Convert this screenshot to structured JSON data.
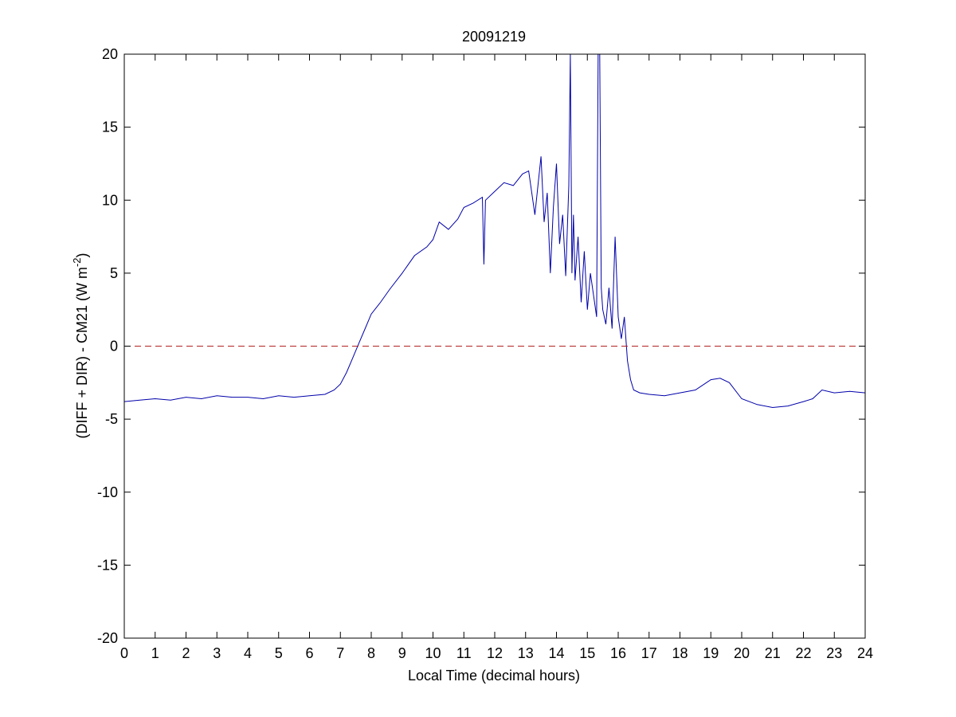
{
  "chart_data": {
    "type": "line",
    "title": "20091219",
    "xlabel": "Local Time (decimal hours)",
    "ylabel": {
      "prefix": "(DIFF + DIR) - CM21 (W m",
      "superscript": "-2",
      "suffix": ")"
    },
    "xlim": [
      0,
      24
    ],
    "ylim": [
      -20,
      20
    ],
    "xticks": [
      0,
      1,
      2,
      3,
      4,
      5,
      6,
      7,
      8,
      9,
      10,
      11,
      12,
      13,
      14,
      15,
      16,
      17,
      18,
      19,
      20,
      21,
      22,
      23,
      24
    ],
    "yticks": [
      -20,
      -15,
      -10,
      -5,
      0,
      5,
      10,
      15,
      20
    ],
    "grid": false,
    "series": [
      {
        "color": "#0000aa",
        "x": [
          0,
          0.5,
          1.0,
          1.5,
          2.0,
          2.5,
          3.0,
          3.5,
          4.0,
          4.5,
          5.0,
          5.5,
          6.0,
          6.5,
          6.8,
          7.0,
          7.2,
          7.4,
          7.6,
          7.8,
          8.0,
          8.3,
          8.6,
          9.0,
          9.4,
          9.8,
          10.0,
          10.2,
          10.5,
          10.8,
          11.0,
          11.3,
          11.6,
          11.65,
          11.7,
          12.0,
          12.3,
          12.6,
          12.9,
          13.1,
          13.3,
          13.5,
          13.6,
          13.7,
          13.8,
          13.9,
          14.0,
          14.1,
          14.2,
          14.3,
          14.4,
          14.45,
          14.5,
          14.55,
          14.6,
          14.7,
          14.8,
          14.9,
          15.0,
          15.1,
          15.2,
          15.3,
          15.35,
          15.4,
          15.45,
          15.5,
          15.6,
          15.7,
          15.8,
          15.9,
          16.0,
          16.1,
          16.2,
          16.3,
          16.4,
          16.5,
          16.7,
          17.0,
          17.5,
          18.0,
          18.5,
          19.0,
          19.3,
          19.6,
          20.0,
          20.5,
          21.0,
          21.5,
          22.0,
          22.3,
          22.6,
          23.0,
          23.5,
          24.0
        ],
        "values": [
          -3.8,
          -3.7,
          -3.6,
          -3.7,
          -3.5,
          -3.6,
          -3.4,
          -3.5,
          -3.5,
          -3.6,
          -3.4,
          -3.5,
          -3.4,
          -3.3,
          -3.0,
          -2.6,
          -1.8,
          -0.8,
          0.2,
          1.2,
          2.2,
          3.0,
          3.9,
          5.0,
          6.2,
          6.8,
          7.3,
          8.5,
          8.0,
          8.7,
          9.5,
          9.8,
          10.2,
          5.6,
          10.0,
          10.6,
          11.2,
          11.0,
          11.8,
          12.0,
          9.0,
          13.0,
          8.5,
          10.5,
          5.0,
          9.5,
          12.5,
          7.0,
          9.0,
          4.8,
          11.0,
          20.0,
          5.0,
          9.0,
          4.5,
          7.5,
          3.0,
          6.5,
          2.5,
          5.0,
          3.5,
          2.0,
          20.0,
          20.0,
          4.0,
          2.5,
          1.5,
          4.0,
          1.2,
          7.5,
          2.0,
          0.5,
          2.0,
          -1.0,
          -2.3,
          -3.0,
          -3.2,
          -3.3,
          -3.4,
          -3.2,
          -3.0,
          -2.3,
          -2.2,
          -2.5,
          -3.6,
          -4.0,
          -4.2,
          -4.1,
          -3.8,
          -3.6,
          -3.0,
          -3.2,
          -3.1,
          -3.2
        ]
      },
      {
        "color": "#b22222",
        "style": "dashed",
        "x": [
          0,
          24
        ],
        "values": [
          0,
          0
        ]
      }
    ]
  }
}
